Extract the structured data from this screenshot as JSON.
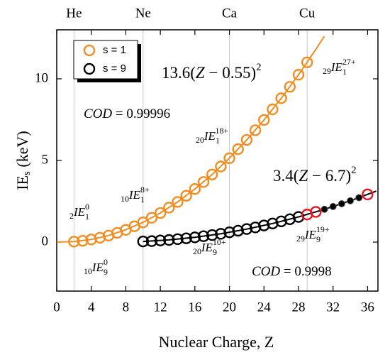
{
  "chart_data": {
    "type": "scatter",
    "xlabel": "Nuclear Charge, Z",
    "ylabel": {
      "main": "IE",
      "sub": "s",
      "unit": " (keV)"
    },
    "xlim": [
      0,
      37.2
    ],
    "ylim": [
      -3,
      13
    ],
    "xticks": [
      0,
      4,
      8,
      12,
      16,
      20,
      24,
      28,
      32,
      36
    ],
    "yticks": [
      0,
      5,
      10
    ],
    "element_lines": {
      "x": [
        2,
        10,
        20,
        29
      ],
      "labels": [
        "He",
        "Ne",
        "Ca",
        "Cu"
      ],
      "color": "#c8c8c8"
    },
    "series": [
      {
        "name": "s = 1",
        "color": "#f28c1e",
        "x": [
          2,
          3,
          4,
          5,
          6,
          7,
          8,
          9,
          10,
          11,
          12,
          13,
          14,
          15,
          16,
          17,
          18,
          19,
          20,
          21,
          22,
          23,
          24,
          25,
          26,
          27,
          28,
          29
        ],
        "values": [
          0.03,
          0.08,
          0.16,
          0.27,
          0.4,
          0.57,
          0.75,
          0.97,
          1.21,
          1.49,
          1.78,
          2.11,
          2.46,
          2.84,
          3.25,
          3.68,
          4.14,
          4.63,
          5.14,
          5.69,
          6.26,
          6.85,
          7.48,
          8.13,
          8.81,
          9.51,
          10.25,
          11.01
        ],
        "styles": [
          "open",
          "open",
          "open",
          "open",
          "open",
          "open",
          "open",
          "open",
          "open",
          "open",
          "open",
          "open",
          "open",
          "open",
          "open",
          "open",
          "open",
          "open",
          "open",
          "open",
          "open",
          "open",
          "open",
          "open",
          "open",
          "open",
          "open",
          "open"
        ]
      },
      {
        "name": "s = 9",
        "color": "#000000",
        "highlight_color": "#e8141e",
        "x": [
          10,
          11,
          12,
          13,
          14,
          15,
          16,
          17,
          18,
          19,
          20,
          21,
          22,
          23,
          24,
          25,
          26,
          27,
          28,
          29,
          30,
          31,
          32,
          33,
          34,
          35,
          36
        ],
        "values": [
          0.04,
          0.06,
          0.1,
          0.13,
          0.18,
          0.23,
          0.29,
          0.36,
          0.43,
          0.51,
          0.6,
          0.7,
          0.8,
          0.9,
          1.02,
          1.14,
          1.27,
          1.4,
          1.54,
          1.69,
          1.85,
          2.01,
          2.18,
          2.35,
          2.53,
          2.72,
          2.92
        ],
        "styles": [
          "open",
          "open",
          "open",
          "open",
          "open",
          "open",
          "open",
          "open",
          "open",
          "open",
          "open",
          "open",
          "open",
          "open",
          "open",
          "open",
          "open",
          "open",
          "open",
          "highlight",
          "highlight",
          "filled",
          "filled",
          "filled",
          "filled",
          "filled",
          "highlight"
        ]
      }
    ],
    "fit_curves": [
      {
        "color": "#f28c1e",
        "x": [
          0,
          2,
          4,
          6,
          8,
          10,
          12,
          14,
          16,
          18,
          20,
          22,
          24,
          26,
          28,
          30,
          31
        ],
        "values": [
          0.004,
          0.029,
          0.162,
          0.404,
          0.755,
          1.215,
          1.783,
          2.46,
          3.246,
          4.141,
          5.145,
          6.257,
          7.479,
          8.809,
          10.248,
          11.795,
          12.61
        ]
      },
      {
        "color": "#000000",
        "x": [
          10,
          13,
          16,
          19,
          22,
          25,
          28,
          31,
          34,
          37
        ],
        "values": [
          0.037,
          0.135,
          0.294,
          0.514,
          0.796,
          1.139,
          1.543,
          2.008,
          2.534,
          3.122
        ]
      }
    ],
    "annotations": [
      {
        "main": "13.6(",
        "ital": "Z",
        "rest": " − 0.55)",
        "sup": "2"
      },
      {
        "main": "3.4(",
        "ital": "Z",
        "rest": " − 6.7)",
        "sup": "2"
      },
      {
        "ital": "COD",
        "rest": " = 0.99996"
      },
      {
        "ital": "COD",
        "rest": " = 0.9998"
      },
      {
        "pre": "2",
        "ital": "IE",
        "sub": "1",
        "sup": "0"
      },
      {
        "pre": "10",
        "ital": "IE",
        "sub": "1",
        "sup": "8+"
      },
      {
        "pre": "20",
        "ital": "IE",
        "sub": "1",
        "sup": "18+"
      },
      {
        "pre": "29",
        "ital": "IE",
        "sub": "1",
        "sup": "27+"
      },
      {
        "pre": "10",
        "ital": "IE",
        "sub": "9",
        "sup": "0"
      },
      {
        "pre": "20",
        "ital": "IE",
        "sub": "9",
        "sup": "10+"
      },
      {
        "pre": "29",
        "ital": "IE",
        "sub": "9",
        "sup": "19+"
      }
    ]
  }
}
